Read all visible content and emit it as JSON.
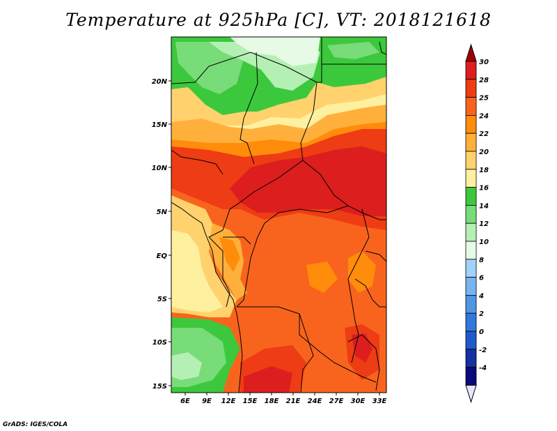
{
  "title": "Temperature at 925hPa [C], VT: 2018121618",
  "credit": "GrADS: IGES/COLA",
  "map": {
    "region": "Central Africa",
    "variable": "Temperature at 925hPa",
    "units": "C",
    "valid_time": "2018121618",
    "lon_range": [
      4,
      34
    ],
    "lat_range": [
      -16,
      24.5
    ],
    "lon_ticks": [
      "6E",
      "9E",
      "12E",
      "15E",
      "18E",
      "21E",
      "24E",
      "27E",
      "30E",
      "33E"
    ],
    "lat_ticks": [
      "20N",
      "15N",
      "10N",
      "5N",
      "EQ",
      "5S",
      "10S",
      "15S"
    ]
  },
  "colorbar": {
    "labels": [
      "30",
      "28",
      "25",
      "24",
      "22",
      "20",
      "18",
      "16",
      "14",
      "12",
      "10",
      "8",
      "6",
      "4",
      "2",
      "0",
      "-2",
      "-4"
    ],
    "colors": [
      "#dc1e1e",
      "#ee3c14",
      "#f8641e",
      "#ff8c0a",
      "#ffb03c",
      "#ffd26e",
      "#fff0a0",
      "#3cc83c",
      "#78dc78",
      "#b4f0b4",
      "#e6fae6",
      "#a0d2fa",
      "#78b4f0",
      "#5096e6",
      "#3278dc",
      "#1e5ac8",
      "#1432a0",
      "#0a0a78"
    ],
    "top_color": "#a00000",
    "bottom_color": "#e6e6ff"
  }
}
